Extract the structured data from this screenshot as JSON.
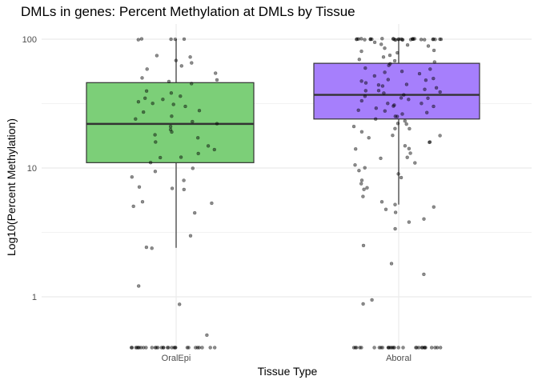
{
  "chart_data": {
    "type": "box",
    "title": "DMLs in genes: Percent Methylation at DMLs by Tissue",
    "xlabel": "Tissue Type",
    "ylabel": "Log10(Percent Methylation)",
    "y_scale": "log10",
    "ylim": [
      0.4,
      100
    ],
    "y_ticks": [
      1,
      10,
      100
    ],
    "y_tick_labels": [
      "1",
      "10",
      "100"
    ],
    "grid": true,
    "categories": [
      "OralEpi",
      "Aboral"
    ],
    "colors": [
      "#7ccf78",
      "#a67ffc"
    ],
    "boxes": [
      {
        "category": "OralEpi",
        "lower_whisker": 2.4,
        "q1": 11,
        "median": 22,
        "q3": 46,
        "upper_whisker": 100
      },
      {
        "category": "Aboral",
        "lower_whisker": 5.2,
        "q1": 24,
        "median": 37,
        "q3": 65,
        "upper_whisker": 100
      }
    ],
    "points": [
      {
        "category": "OralEpi",
        "values": [
          100,
          100,
          100,
          100,
          100,
          75,
          72,
          68,
          65,
          62,
          58,
          55,
          50,
          48,
          47,
          45,
          40,
          38,
          36,
          35,
          34,
          33,
          32,
          31,
          30,
          28,
          27,
          25,
          24,
          23,
          22,
          21,
          20,
          19,
          18,
          17,
          16,
          15,
          14,
          13,
          12,
          12,
          11,
          10,
          9.5,
          8.5,
          8,
          7.2,
          7,
          6.8,
          5.5,
          5.3,
          5,
          4.5,
          3,
          2.4,
          2.4,
          1.2,
          0.88,
          0.5,
          0.4,
          0.4,
          0.4,
          0.4,
          0.4,
          0.4,
          0.4,
          0.4,
          0.4,
          0.4,
          0.4,
          0.4,
          0.4,
          0.4,
          0.4,
          0.4,
          0.4,
          0.4,
          0.4,
          0.4,
          0.4,
          0.4,
          0.4,
          0.4,
          0.4,
          0.4,
          0.4,
          0.4,
          0.4,
          0.4
        ]
      },
      {
        "category": "Aboral",
        "values": [
          100,
          100,
          100,
          100,
          100,
          100,
          100,
          100,
          100,
          100,
          100,
          100,
          100,
          100,
          100,
          100,
          100,
          100,
          100,
          100,
          100,
          100,
          100,
          100,
          100,
          100,
          100,
          100,
          100,
          100,
          95,
          92,
          90,
          88,
          85,
          82,
          80,
          78,
          75,
          72,
          70,
          68,
          66,
          64,
          62,
          60,
          58,
          56,
          55,
          54,
          52,
          50,
          49,
          48,
          47,
          46,
          45,
          44,
          43,
          42,
          41,
          40,
          40,
          39,
          38,
          37,
          36,
          35,
          35,
          34,
          33,
          32,
          32,
          31,
          30,
          30,
          29,
          28,
          28,
          27,
          26,
          25,
          25,
          24,
          23,
          22,
          22,
          21,
          20,
          20,
          19,
          18,
          18,
          17,
          16,
          16,
          15,
          14,
          14,
          13,
          12,
          12,
          11,
          10.5,
          10,
          9.5,
          9,
          8.5,
          8,
          7.5,
          7,
          6.8,
          6,
          5.5,
          5.2,
          5,
          4.8,
          4.5,
          4,
          3.8,
          3.4,
          2.5,
          1.8,
          1.5,
          0.95,
          0.88,
          0.4,
          0.4,
          0.4,
          0.4,
          0.4,
          0.4,
          0.4,
          0.4,
          0.4,
          0.4,
          0.4,
          0.4,
          0.4,
          0.4,
          0.4,
          0.4,
          0.4,
          0.4,
          0.4,
          0.4,
          0.4,
          0.4,
          0.4,
          0.4,
          0.4,
          0.4,
          0.4,
          0.4,
          0.4,
          0.4
        ]
      }
    ]
  }
}
